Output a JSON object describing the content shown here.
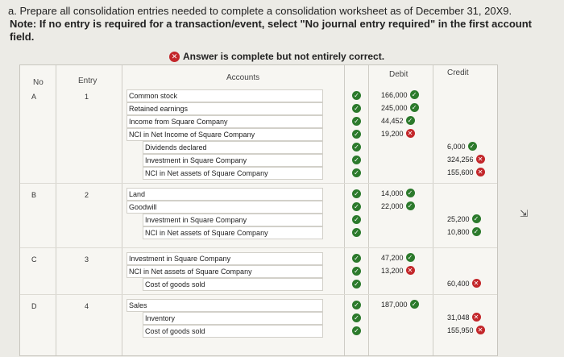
{
  "question": {
    "line1": "a. Prepare all consolidation entries needed to complete a consolidation worksheet as of December 31, 20X9.",
    "line2": "Note: If no entry is required for a transaction/event, select \"No journal entry required\" in the first account field."
  },
  "status_text": "Answer is complete but not entirely correct.",
  "headers": {
    "no": "No",
    "entry": "Entry",
    "accounts": "Accounts",
    "debit": "Debit",
    "credit": "Credit"
  },
  "groups": [
    {
      "no": "A",
      "entry": "1",
      "rows": [
        {
          "account": "Common stock",
          "debit": "166,000",
          "debit_status": "correct",
          "credit": "",
          "credit_status": ""
        },
        {
          "account": "Retained earnings",
          "debit": "245,000",
          "debit_status": "correct",
          "credit": "",
          "credit_status": ""
        },
        {
          "account": "Income from Square Company",
          "debit": "44,452",
          "debit_status": "correct",
          "credit": "",
          "credit_status": ""
        },
        {
          "account": "NCI in Net Income of Square Company",
          "debit": "19,200",
          "debit_status": "incorrect",
          "credit": "",
          "credit_status": ""
        },
        {
          "account": "Dividends declared",
          "debit": "",
          "debit_status": "",
          "credit": "6,000",
          "credit_status": "correct"
        },
        {
          "account": "Investment in Square Company",
          "debit": "",
          "debit_status": "",
          "credit": "324,256",
          "credit_status": "incorrect"
        },
        {
          "account": "NCI in Net assets of Square Company",
          "debit": "",
          "debit_status": "",
          "credit": "155,600",
          "credit_status": "incorrect"
        }
      ]
    },
    {
      "no": "B",
      "entry": "2",
      "rows": [
        {
          "account": "Land",
          "debit": "14,000",
          "debit_status": "correct",
          "credit": "",
          "credit_status": ""
        },
        {
          "account": "Goodwill",
          "debit": "22,000",
          "debit_status": "correct",
          "credit": "",
          "credit_status": ""
        },
        {
          "account": "Investment in Square Company",
          "debit": "",
          "debit_status": "",
          "credit": "25,200",
          "credit_status": "correct"
        },
        {
          "account": "NCI in Net assets of Square Company",
          "debit": "",
          "debit_status": "",
          "credit": "10,800",
          "credit_status": "correct"
        }
      ]
    },
    {
      "no": "C",
      "entry": "3",
      "rows": [
        {
          "account": "Investment in Square Company",
          "debit": "47,200",
          "debit_status": "correct",
          "credit": "",
          "credit_status": ""
        },
        {
          "account": "NCI in Net assets of Square Company",
          "debit": "13,200",
          "debit_status": "incorrect",
          "credit": "",
          "credit_status": ""
        },
        {
          "account": "Cost of goods sold",
          "debit": "",
          "debit_status": "",
          "credit": "60,400",
          "credit_status": "incorrect"
        }
      ]
    },
    {
      "no": "D",
      "entry": "4",
      "rows": [
        {
          "account": "Sales",
          "debit": "187,000",
          "debit_status": "correct",
          "credit": "",
          "credit_status": ""
        },
        {
          "account": "Inventory",
          "debit": "",
          "debit_status": "",
          "credit": "31,048",
          "credit_status": "incorrect"
        },
        {
          "account": "Cost of goods sold",
          "debit": "",
          "debit_status": "",
          "credit": "155,950",
          "credit_status": "incorrect"
        }
      ]
    }
  ]
}
